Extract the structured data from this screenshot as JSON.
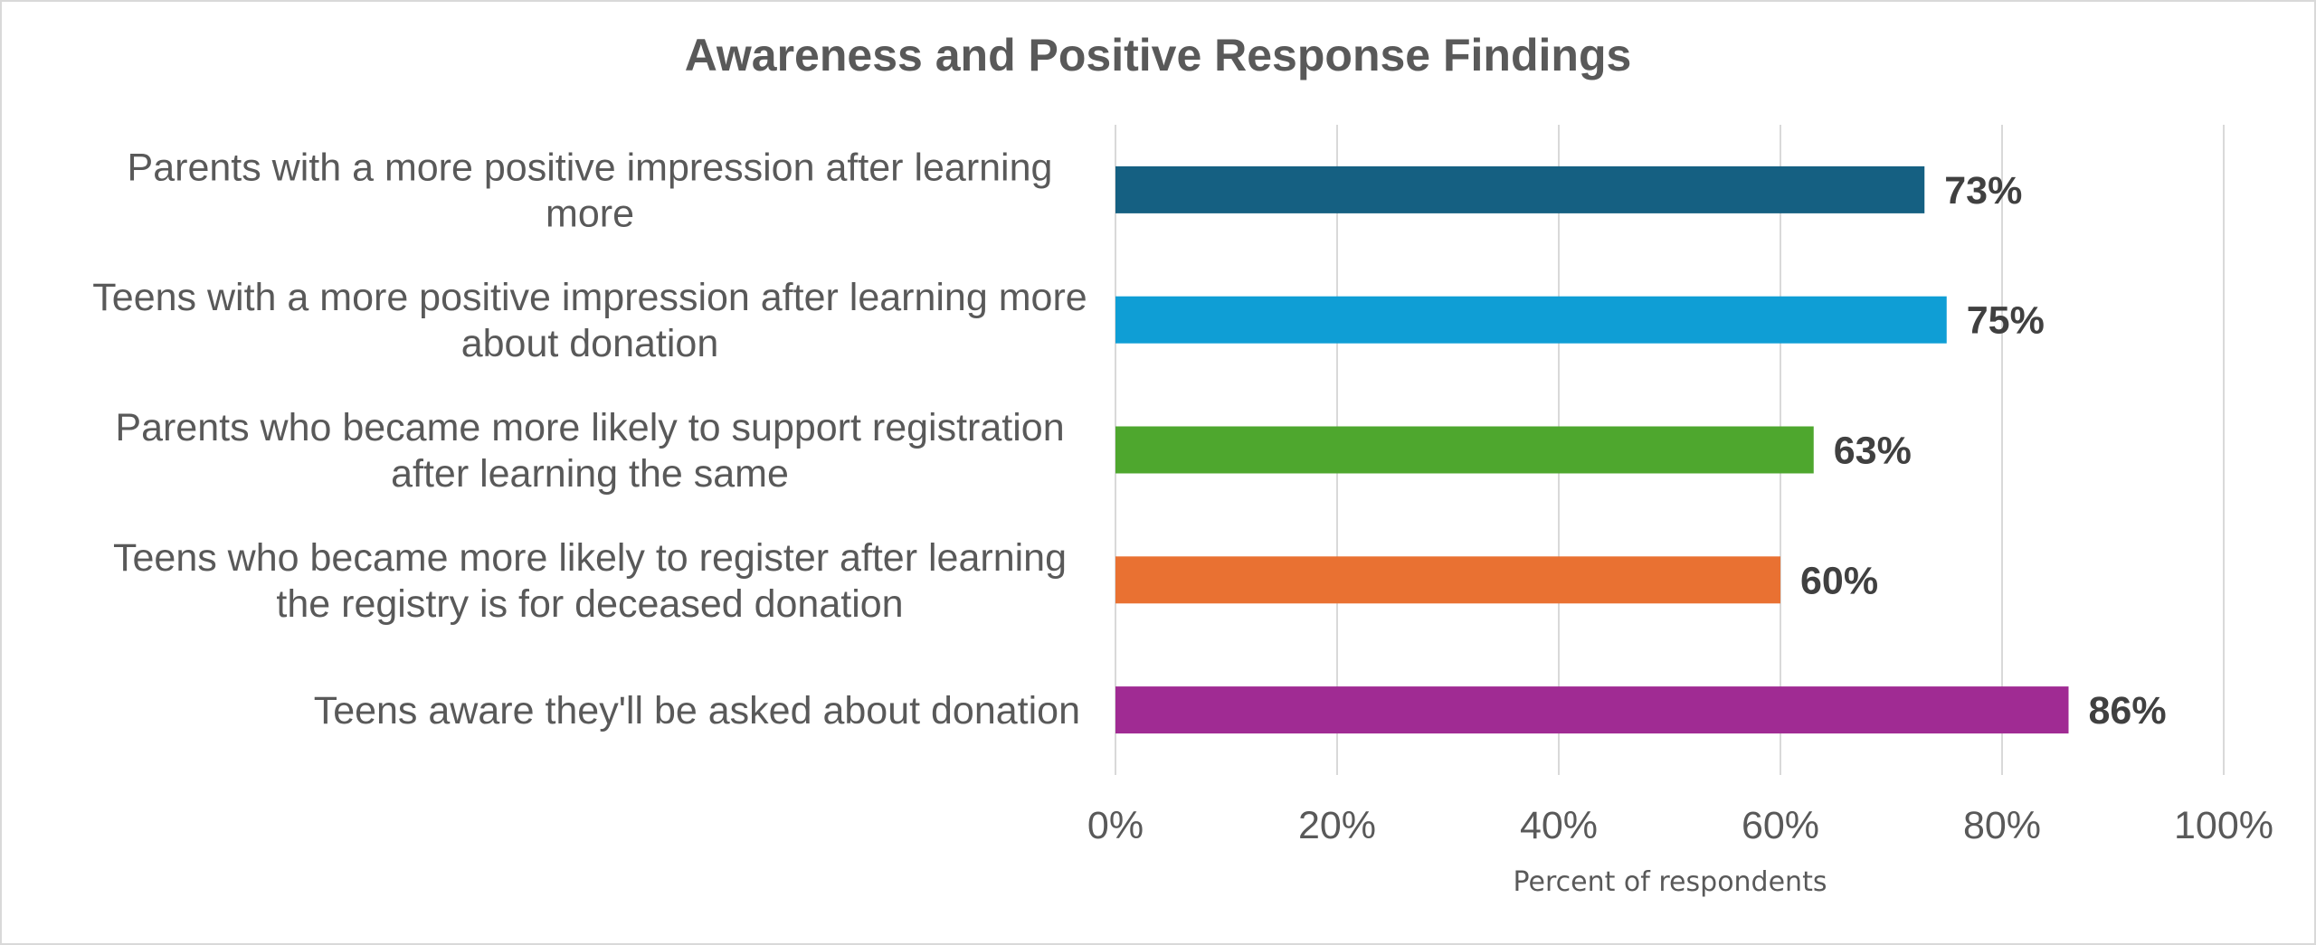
{
  "chart_data": {
    "type": "bar",
    "orientation": "horizontal",
    "title": "Awareness and Positive Response Findings",
    "xlabel": "Percent of respondents",
    "ylabel": "",
    "xlim": [
      0,
      100
    ],
    "x_ticks": [
      "0%",
      "20%",
      "40%",
      "60%",
      "80%",
      "100%"
    ],
    "grid": "vertical",
    "legend": "none",
    "categories": [
      [
        "Parents with a more positive impression after learning",
        "more"
      ],
      [
        "Teens with a more positive impression after learning more",
        "about donation"
      ],
      [
        "Parents who became more likely to support registration",
        "after learning the same"
      ],
      [
        "Teens who became more likely to register after learning",
        "the registry is for deceased donation"
      ],
      [
        "Teens aware they'll be asked about donation"
      ]
    ],
    "values": [
      73,
      75,
      63,
      60,
      86
    ],
    "value_labels": [
      "73%",
      "75%",
      "63%",
      "60%",
      "86%"
    ],
    "colors": [
      "#156082",
      "#0F9ED5",
      "#4EA72E",
      "#E97132",
      "#A02B93"
    ]
  }
}
